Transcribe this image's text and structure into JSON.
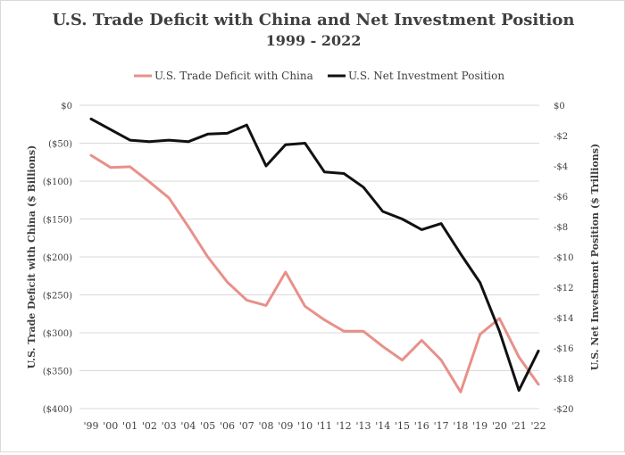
{
  "chart_data": {
    "type": "line",
    "title": "U.S. Trade Deficit with China and Net Investment Position",
    "subtitle": "1999 - 2022",
    "categories": [
      "'99",
      "'00",
      "'01",
      "'02",
      "'03",
      "'04",
      "'05",
      "'06",
      "'07",
      "'08",
      "'09",
      "'10",
      "'11",
      "'12",
      "'13",
      "'14",
      "'15",
      "'16",
      "'17",
      "'18",
      "'19",
      "'20",
      "'21",
      "'22"
    ],
    "left_axis": {
      "label": "U.S. Trade Deficit with China ($ Billions)",
      "ylim": [
        -400,
        0
      ],
      "ticks": [
        0,
        -50,
        -100,
        -150,
        -200,
        -250,
        -300,
        -350,
        -400
      ],
      "tick_labels": [
        "$0",
        "($50)",
        "($100)",
        "($150)",
        "($200)",
        "($250)",
        "($300)",
        "($350)",
        "($400)"
      ]
    },
    "right_axis": {
      "label": "U.S. Net Investment Position ($ Trillions)",
      "ylim": [
        -20,
        0
      ],
      "ticks": [
        0,
        -2,
        -4,
        -6,
        -8,
        -10,
        -12,
        -14,
        -16,
        -18,
        -20
      ],
      "tick_labels": [
        "$0",
        "-$2",
        "-$4",
        "-$6",
        "-$8",
        "-$10",
        "-$12",
        "-$14",
        "-$16",
        "-$18",
        "-$20"
      ]
    },
    "series": [
      {
        "name": "U.S. Trade Deficit with China",
        "axis": "left",
        "color": "#e8908a",
        "values": [
          -66,
          -82,
          -81,
          -101,
          -122,
          -160,
          -200,
          -233,
          -257,
          -264,
          -220,
          -265,
          -283,
          -298,
          -298,
          -318,
          -336,
          -310,
          -336,
          -378,
          -302,
          -281,
          -332,
          -368
        ]
      },
      {
        "name": "U.S. Net Investment Position",
        "axis": "right",
        "color": "#111111",
        "values": [
          -0.9,
          -1.6,
          -2.3,
          -2.4,
          -2.3,
          -2.4,
          -1.9,
          -1.85,
          -1.3,
          -4.0,
          -2.6,
          -2.5,
          -4.4,
          -4.5,
          -5.4,
          -7.0,
          -7.5,
          -8.2,
          -7.8,
          -9.8,
          -11.7,
          -14.9,
          -18.8,
          -16.2
        ]
      }
    ],
    "legend": [
      "U.S. Trade Deficit with China",
      "U.S. Net Investment Position"
    ],
    "grid": true,
    "legend_position": "top"
  }
}
